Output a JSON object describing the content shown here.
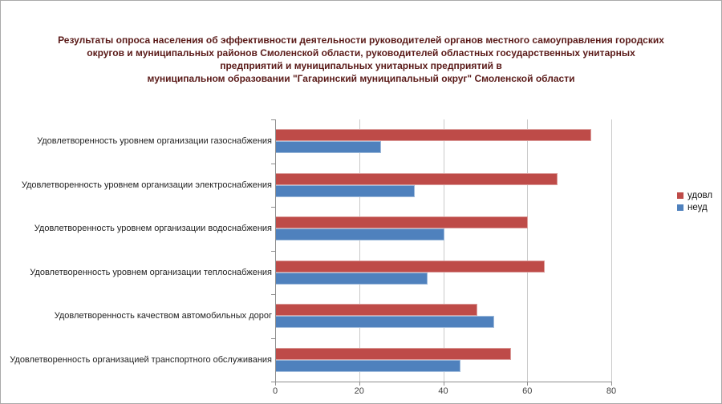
{
  "title": {
    "lines": [
      "Результаты опроса населения об эффективности деятельности руководителей органов местного самоуправления городских",
      "округов и муниципальных районов Смоленской области, руководителей областных государственных унитарных",
      "предприятий и муниципальных унитарных предприятий в",
      "муниципальном образовании \"Гагаринский муниципальный округ\" Смоленской области"
    ],
    "color": "#5a1a18"
  },
  "legend": {
    "items": [
      {
        "label": "удовл",
        "color": "#be4b48"
      },
      {
        "label": "неуд",
        "color": "#4f81bd"
      }
    ]
  },
  "chart_data": {
    "type": "bar",
    "orientation": "horizontal",
    "title": "Результаты опроса населения об эффективности деятельности руководителей органов местного самоуправления городских округов и муниципальных районов Смоленской области, руководителей областных государственных унитарных предприятий и муниципальных унитарных предприятий в муниципальном образовании \"Гагаринский муниципальный округ\" Смоленской области",
    "categories": [
      "Удовлетворенность уровнем организации газоснабжения",
      "Удовлетворенность уровнем организации электроснабжения",
      "Удовлетворенность уровнем организации водоснабжения",
      "Удовлетворенность уровнем организации теплоснабжения",
      "Удовлетворенность качеством автомобильных дорог",
      "Удовлетворенность организацией транспортного обслуживания"
    ],
    "series": [
      {
        "name": "удовл",
        "color": "#be4b48",
        "values": [
          75,
          67,
          60,
          64,
          48,
          56
        ]
      },
      {
        "name": "неуд",
        "color": "#4f81bd",
        "values": [
          25,
          33,
          40,
          36,
          52,
          44
        ]
      }
    ],
    "xlabel": "",
    "ylabel": "",
    "xlim": [
      0,
      80
    ],
    "xticks": [
      0,
      20,
      40,
      60,
      80
    ],
    "grid": true,
    "legend_position": "right"
  }
}
